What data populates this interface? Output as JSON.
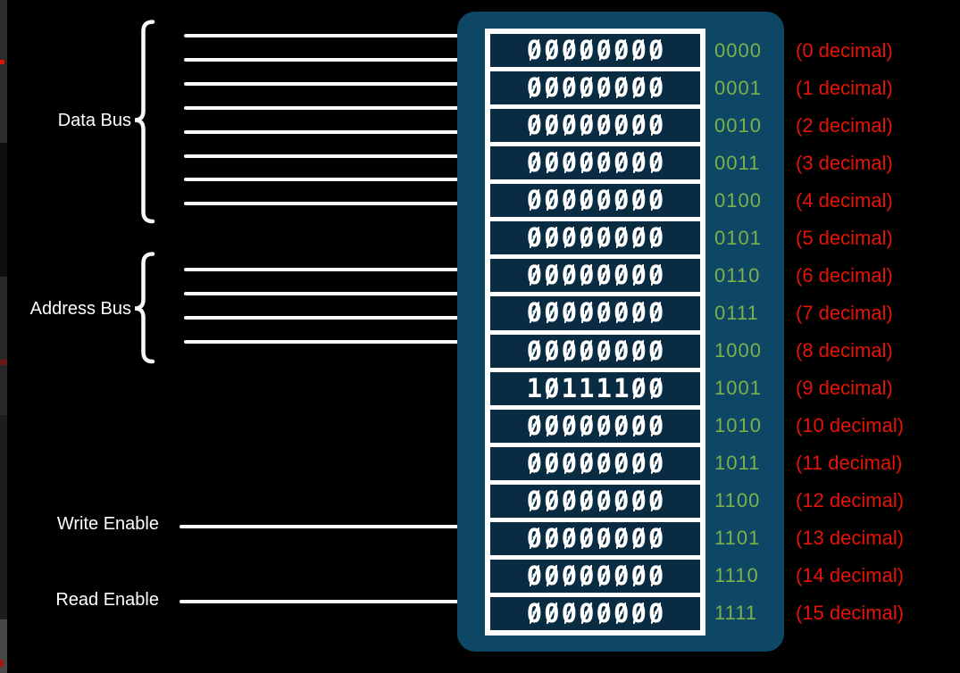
{
  "colors": {
    "background": "#000000",
    "memory_box": "#0e4765",
    "cell_bg": "#0a2c42",
    "cell_frame": "#ffffff",
    "wire": "#fafafa",
    "label_text": "#ffffff",
    "address_text": "#7cb14a",
    "decimal_text": "#e51408"
  },
  "buses": {
    "data_bus": {
      "label": "Data Bus",
      "wire_count": 8
    },
    "address_bus": {
      "label": "Address Bus",
      "wire_count": 4
    }
  },
  "signals": {
    "write_enable": {
      "label": "Write Enable"
    },
    "read_enable": {
      "label": "Read Enable"
    }
  },
  "memory": {
    "rows": [
      {
        "value": "00000000",
        "address": "0000",
        "decimal": "(0 decimal)"
      },
      {
        "value": "00000000",
        "address": "0001",
        "decimal": "(1 decimal)"
      },
      {
        "value": "00000000",
        "address": "0010",
        "decimal": "(2 decimal)"
      },
      {
        "value": "00000000",
        "address": "0011",
        "decimal": "(3 decimal)"
      },
      {
        "value": "00000000",
        "address": "0100",
        "decimal": "(4 decimal)"
      },
      {
        "value": "00000000",
        "address": "0101",
        "decimal": "(5 decimal)"
      },
      {
        "value": "00000000",
        "address": "0110",
        "decimal": "(6 decimal)"
      },
      {
        "value": "00000000",
        "address": "0111",
        "decimal": "(7 decimal)"
      },
      {
        "value": "00000000",
        "address": "1000",
        "decimal": "(8 decimal)"
      },
      {
        "value": "10111100",
        "address": "1001",
        "decimal": "(9 decimal)"
      },
      {
        "value": "00000000",
        "address": "1010",
        "decimal": "(10 decimal)"
      },
      {
        "value": "00000000",
        "address": "1011",
        "decimal": "(11 decimal)"
      },
      {
        "value": "00000000",
        "address": "1100",
        "decimal": "(12 decimal)"
      },
      {
        "value": "00000000",
        "address": "1101",
        "decimal": "(13 decimal)"
      },
      {
        "value": "00000000",
        "address": "1110",
        "decimal": "(14 decimal)"
      },
      {
        "value": "00000000",
        "address": "1111",
        "decimal": "(15 decimal)"
      }
    ]
  }
}
